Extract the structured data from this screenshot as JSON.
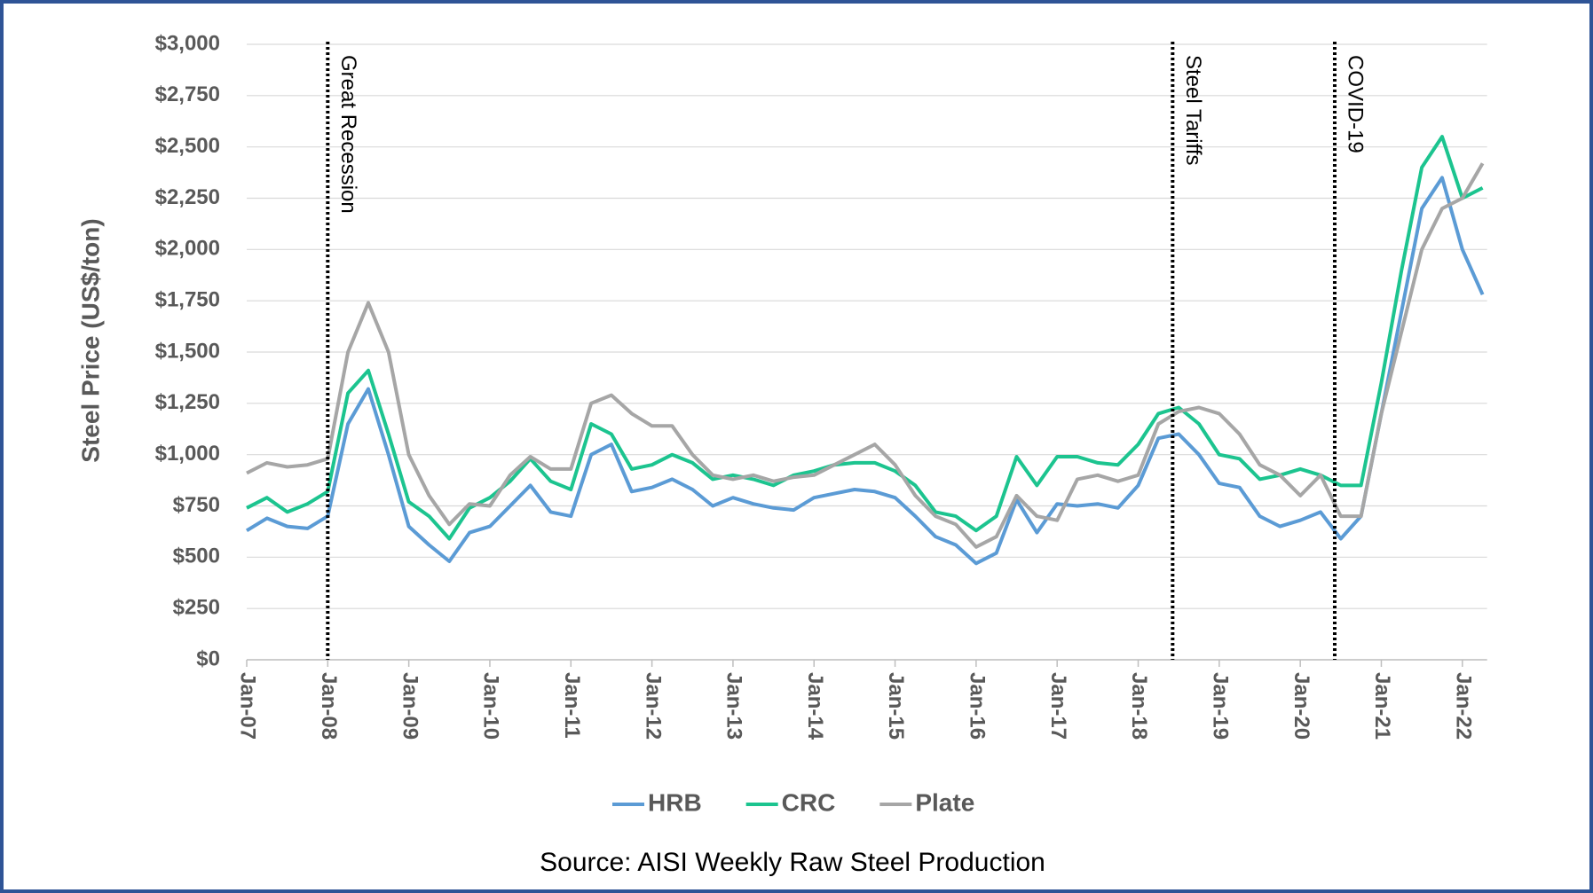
{
  "chart_data": {
    "type": "line",
    "ylabel": "Steel Price (US$/ton)",
    "source": "Source: AISI Weekly Raw Steel Production",
    "categories": [
      "Jan-07",
      null,
      null,
      null,
      "Jan-08",
      null,
      null,
      null,
      "Jan-09",
      null,
      null,
      null,
      "Jan-10",
      null,
      null,
      null,
      "Jan-11",
      null,
      null,
      null,
      "Jan-12",
      null,
      null,
      null,
      "Jan-13",
      null,
      null,
      null,
      "Jan-14",
      null,
      null,
      null,
      "Jan-15",
      null,
      null,
      null,
      "Jan-16",
      null,
      null,
      null,
      "Jan-17",
      null,
      null,
      null,
      "Jan-18",
      null,
      null,
      null,
      "Jan-19",
      null,
      null,
      null,
      "Jan-20",
      null,
      null,
      null,
      "Jan-21",
      null,
      null,
      null,
      "Jan-22",
      null
    ],
    "series": [
      {
        "name": "HRB",
        "color": "#5b9bd5",
        "values": [
          630,
          690,
          650,
          640,
          700,
          1150,
          1320,
          1000,
          650,
          560,
          480,
          620,
          650,
          750,
          850,
          720,
          700,
          1000,
          1050,
          820,
          840,
          880,
          830,
          750,
          790,
          760,
          740,
          730,
          790,
          810,
          830,
          820,
          790,
          700,
          600,
          560,
          470,
          520,
          780,
          620,
          760,
          750,
          760,
          740,
          850,
          1080,
          1100,
          1000,
          860,
          840,
          700,
          650,
          680,
          720,
          590,
          700,
          1200,
          1700,
          2200,
          2350,
          2000,
          1780
        ]
      },
      {
        "name": "CRC",
        "color": "#1cc48f",
        "values": [
          740,
          790,
          720,
          760,
          820,
          1300,
          1410,
          1100,
          770,
          700,
          590,
          740,
          790,
          870,
          980,
          870,
          830,
          1150,
          1100,
          930,
          950,
          1000,
          960,
          880,
          900,
          880,
          850,
          900,
          920,
          950,
          960,
          960,
          920,
          850,
          720,
          700,
          630,
          700,
          990,
          850,
          990,
          990,
          960,
          950,
          1050,
          1200,
          1230,
          1150,
          1000,
          980,
          880,
          900,
          930,
          900,
          850,
          850,
          1350,
          1900,
          2400,
          2550,
          2250,
          2300
        ]
      },
      {
        "name": "Plate",
        "color": "#a6a6a6",
        "values": [
          910,
          960,
          940,
          950,
          980,
          1500,
          1740,
          1500,
          1000,
          800,
          660,
          760,
          750,
          900,
          990,
          930,
          930,
          1250,
          1290,
          1200,
          1140,
          1140,
          1000,
          900,
          880,
          900,
          870,
          890,
          900,
          950,
          1000,
          1050,
          950,
          800,
          700,
          660,
          550,
          600,
          800,
          700,
          680,
          880,
          900,
          870,
          900,
          1150,
          1210,
          1230,
          1200,
          1100,
          950,
          900,
          800,
          900,
          700,
          700,
          1200,
          1600,
          2000,
          2200,
          2250,
          2420
        ]
      }
    ],
    "ylim": [
      0,
      3000
    ],
    "yticks": [
      {
        "value": 0,
        "label": "$0"
      },
      {
        "value": 250,
        "label": "$250"
      },
      {
        "value": 500,
        "label": "$500"
      },
      {
        "value": 750,
        "label": "$750"
      },
      {
        "value": 1000,
        "label": "$1,000"
      },
      {
        "value": 1250,
        "label": "$1,250"
      },
      {
        "value": 1500,
        "label": "$1,500"
      },
      {
        "value": 1750,
        "label": "$1,750"
      },
      {
        "value": 2000,
        "label": "$2,000"
      },
      {
        "value": 2250,
        "label": "$2,250"
      },
      {
        "value": 2500,
        "label": "$2,500"
      },
      {
        "value": 2750,
        "label": "$2,750"
      },
      {
        "value": 3000,
        "label": "$3,000"
      }
    ],
    "grid": true,
    "annotations": [
      {
        "text": "Great Recession",
        "at": 4
      },
      {
        "text": "Steel Tariffs",
        "at": 45.7
      },
      {
        "text": "COVID-19",
        "at": 53.7
      }
    ]
  }
}
